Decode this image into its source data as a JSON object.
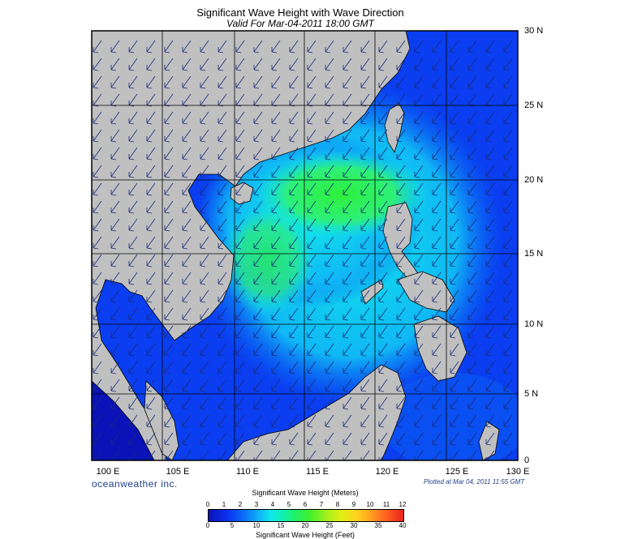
{
  "header": {
    "title": "Significant Wave Height with Wave Direction",
    "valid": "Valid For Mar-04-2011 18:00 GMT"
  },
  "axes": {
    "lat_labels": [
      "30 N",
      "25 N",
      "20 N",
      "15 N",
      "10 N",
      "5 N",
      "0"
    ],
    "lon_labels": [
      "100 E",
      "105 E",
      "110 E",
      "115 E",
      "120 E",
      "125 E",
      "130 E"
    ]
  },
  "footer": {
    "brand": "oceanweather inc.",
    "plotted": "Plotted at Mar 04, 2011 11:55 GMT"
  },
  "colorbar": {
    "meters_title": "Significant Wave Height (Meters)",
    "feet_title": "Significant Wave Height (Feet)",
    "meters_ticks": [
      "0",
      "1",
      "2",
      "3",
      "4",
      "5",
      "6",
      "7",
      "8",
      "9",
      "10",
      "11",
      "12"
    ],
    "feet_ticks": [
      "0",
      "5",
      "10",
      "15",
      "20",
      "25",
      "30",
      "35",
      "40"
    ]
  },
  "colors": {
    "land": "#c0c0c0",
    "deep_blue": "#0a12b8",
    "blue": "#0a32f0",
    "cyan": "#10e9ec",
    "green": "#3ff02d"
  }
}
